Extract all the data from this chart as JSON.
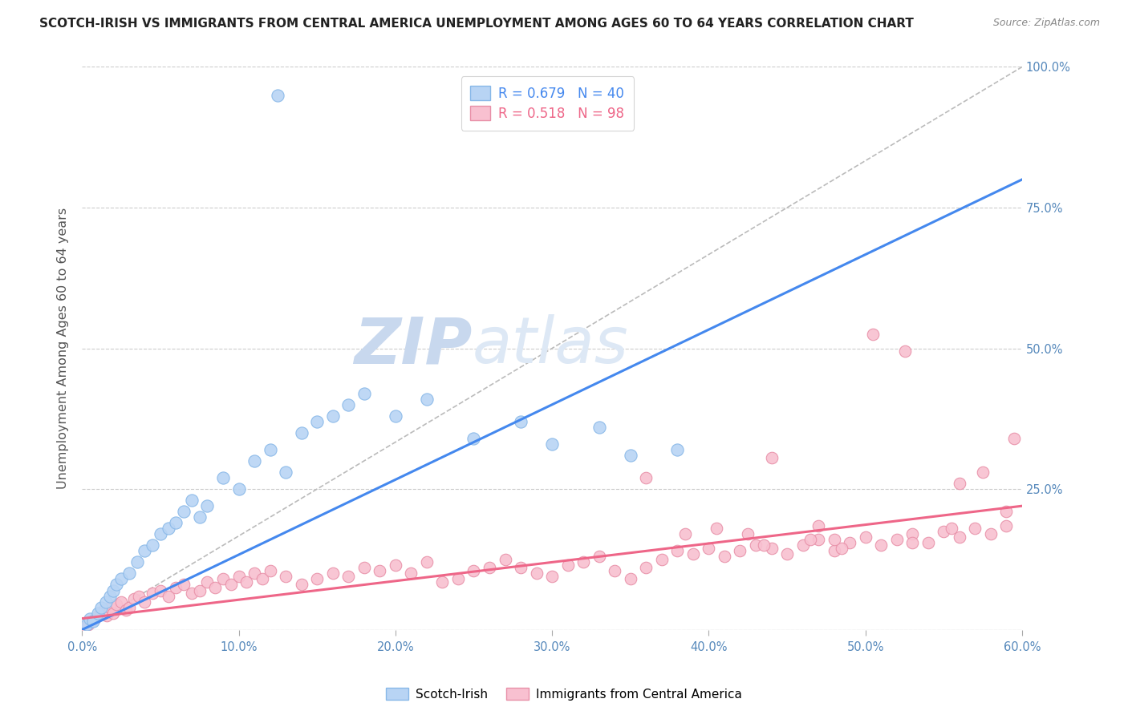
{
  "title": "SCOTCH-IRISH VS IMMIGRANTS FROM CENTRAL AMERICA UNEMPLOYMENT AMONG AGES 60 TO 64 YEARS CORRELATION CHART",
  "source": "Source: ZipAtlas.com",
  "ylabel": "Unemployment Among Ages 60 to 64 years",
  "xlim": [
    0.0,
    60.0
  ],
  "ylim": [
    0.0,
    100.0
  ],
  "background_color": "#ffffff",
  "grid_color": "#cccccc",
  "title_color": "#222222",
  "right_tick_color": "#5588bb",
  "watermark_zip": "ZIP",
  "watermark_atlas": "atlas",
  "watermark_color": "#c8d8ee",
  "scotch_irish_R": 0.679,
  "scotch_irish_N": 40,
  "scotch_irish_color": "#b8d4f4",
  "scotch_irish_edge": "#88b8e8",
  "scotch_irish_label": "Scotch-Irish",
  "central_america_R": 0.518,
  "central_america_N": 98,
  "central_america_color": "#f8c0d0",
  "central_america_edge": "#e890a8",
  "central_america_label": "Immigrants from Central America",
  "blue_line_color": "#4488ee",
  "pink_line_color": "#ee6688",
  "diag_line_color": "#bbbbbb",
  "si_x": [
    0.3,
    0.5,
    0.7,
    1.0,
    1.2,
    1.5,
    1.8,
    2.0,
    2.2,
    2.5,
    3.0,
    3.5,
    4.0,
    4.5,
    5.0,
    5.5,
    6.0,
    6.5,
    7.0,
    7.5,
    8.0,
    9.0,
    10.0,
    11.0,
    12.0,
    13.0,
    14.0,
    15.0,
    16.0,
    17.0,
    18.0,
    20.0,
    22.0,
    25.0,
    28.0,
    30.0,
    33.0,
    35.0,
    38.0,
    12.5
  ],
  "si_y": [
    1.0,
    2.0,
    1.5,
    3.0,
    4.0,
    5.0,
    6.0,
    7.0,
    8.0,
    9.0,
    10.0,
    12.0,
    14.0,
    15.0,
    17.0,
    18.0,
    19.0,
    21.0,
    23.0,
    20.0,
    22.0,
    27.0,
    25.0,
    30.0,
    32.0,
    28.0,
    35.0,
    37.0,
    38.0,
    40.0,
    42.0,
    38.0,
    41.0,
    34.0,
    37.0,
    33.0,
    36.0,
    31.0,
    32.0,
    95.0
  ],
  "ca_x": [
    0.2,
    0.4,
    0.6,
    0.8,
    1.0,
    1.2,
    1.4,
    1.6,
    1.8,
    2.0,
    2.2,
    2.5,
    2.8,
    3.0,
    3.3,
    3.6,
    4.0,
    4.5,
    5.0,
    5.5,
    6.0,
    6.5,
    7.0,
    7.5,
    8.0,
    8.5,
    9.0,
    9.5,
    10.0,
    10.5,
    11.0,
    11.5,
    12.0,
    13.0,
    14.0,
    15.0,
    16.0,
    17.0,
    18.0,
    19.0,
    20.0,
    21.0,
    22.0,
    23.0,
    24.0,
    25.0,
    26.0,
    27.0,
    28.0,
    29.0,
    30.0,
    31.0,
    32.0,
    33.0,
    34.0,
    35.0,
    36.0,
    37.0,
    38.0,
    39.0,
    40.0,
    41.0,
    42.0,
    43.0,
    44.0,
    45.0,
    46.0,
    47.0,
    48.0,
    49.0,
    50.0,
    51.0,
    52.0,
    53.0,
    54.0,
    55.0,
    56.0,
    57.0,
    58.0,
    59.0,
    38.5,
    40.5,
    43.5,
    46.5,
    48.5,
    50.5,
    52.5,
    55.5,
    57.5,
    59.5,
    36.0,
    44.0,
    48.0,
    53.0,
    56.0,
    59.0,
    42.5,
    47.0
  ],
  "ca_y": [
    0.5,
    1.0,
    1.5,
    2.0,
    2.5,
    3.0,
    3.5,
    2.5,
    4.0,
    3.0,
    4.5,
    5.0,
    3.5,
    4.0,
    5.5,
    6.0,
    5.0,
    6.5,
    7.0,
    6.0,
    7.5,
    8.0,
    6.5,
    7.0,
    8.5,
    7.5,
    9.0,
    8.0,
    9.5,
    8.5,
    10.0,
    9.0,
    10.5,
    9.5,
    8.0,
    9.0,
    10.0,
    9.5,
    11.0,
    10.5,
    11.5,
    10.0,
    12.0,
    8.5,
    9.0,
    10.5,
    11.0,
    12.5,
    11.0,
    10.0,
    9.5,
    11.5,
    12.0,
    13.0,
    10.5,
    9.0,
    11.0,
    12.5,
    14.0,
    13.5,
    14.5,
    13.0,
    14.0,
    15.0,
    14.5,
    13.5,
    15.0,
    16.0,
    14.0,
    15.5,
    16.5,
    15.0,
    16.0,
    17.0,
    15.5,
    17.5,
    16.5,
    18.0,
    17.0,
    18.5,
    17.0,
    18.0,
    15.0,
    16.0,
    14.5,
    52.5,
    49.5,
    18.0,
    28.0,
    34.0,
    27.0,
    30.5,
    16.0,
    15.5,
    26.0,
    21.0,
    17.0,
    18.5
  ]
}
